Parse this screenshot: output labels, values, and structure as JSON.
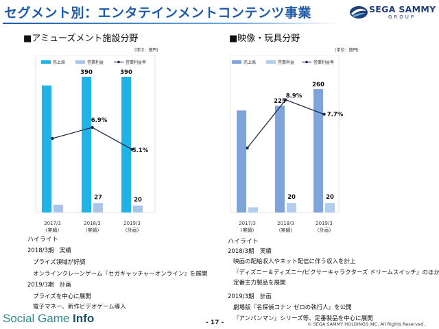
{
  "header": {
    "title": "セグメント別：エンタテインメントコンテンツ事業",
    "logo_text": "SEGA SAMMY",
    "logo_sub": "GROUP"
  },
  "legend": {
    "sales": "売上高",
    "operating_income": "営業利益",
    "margin": "営業利益率"
  },
  "colors": {
    "left_sales": "#1fb3e6",
    "left_income": "#a9c6ea",
    "right_sales": "#7fa3db",
    "right_income": "#b3cdee",
    "line": "#1c2b4a",
    "title_blue": "#1e5aa8"
  },
  "chart_data": [
    {
      "type": "bar",
      "title": "■アミューズメント施設分野",
      "unit": "(単位：億円)",
      "categories": [
        "2017/3",
        "2018/3",
        "2019/3"
      ],
      "category_sub": [
        "(実績)",
        "(実績)",
        "(計画)"
      ],
      "series": [
        {
          "name": "売上高",
          "values": [
            365,
            390,
            390
          ],
          "labels": [
            "",
            "390",
            "390"
          ]
        },
        {
          "name": "営業利益",
          "values": [
            22,
            27,
            20
          ],
          "labels": [
            "",
            "27",
            "20"
          ]
        },
        {
          "name": "営業利益率",
          "kind": "line",
          "values": [
            6.0,
            6.9,
            5.1
          ],
          "labels": [
            "",
            "6.9%",
            "5.1%"
          ]
        }
      ]
    },
    {
      "type": "bar",
      "title": "■映像・玩具分野",
      "unit": "(単位：億円)",
      "categories": [
        "2017/3",
        "2018/3",
        "2019/3"
      ],
      "category_sub": [
        "(実績)",
        "(実績)",
        "(計画)"
      ],
      "series": [
        {
          "name": "売上高",
          "values": [
            215,
            225,
            260
          ],
          "labels": [
            "",
            "225",
            "260"
          ]
        },
        {
          "name": "営業利益",
          "values": [
            11,
            20,
            20
          ],
          "labels": [
            "",
            "20",
            "20"
          ]
        },
        {
          "name": "営業利益率",
          "kind": "line",
          "values": [
            4.9,
            8.9,
            7.7
          ],
          "labels": [
            "",
            "8.9%",
            "7.7%"
          ]
        }
      ]
    }
  ],
  "highlights_left": [
    "ハイライト",
    "2018/3期　実績",
    "プライズ領域が好調",
    "オンラインクレーンゲーム『セガキャッチャーオンライン』を展開",
    "2019/3期　計画",
    "プライズを中心に展開",
    "電子マネー、新作ビデオゲーム導入"
  ],
  "highlights_right": [
    "ハイライト",
    "2018/3期　実績",
    "映画の配給収入やネット配信に伴う収入を計上",
    "『ディズニー＆ディズニー/ピクサーキャラクターズ ドリームスイッチ』のほか、",
    "定番主力製品を展開",
    "2019/3期　計画",
    "劇場版『名探偵コナン ゼロの執行人』を公開",
    "『アンパンマン』シリーズ等、定番製品を中心に展開"
  ],
  "footer": {
    "brand_a": "Social Game ",
    "brand_b": "Info",
    "page": "- 17 -",
    "copyright": "© SEGA SAMMY HOLDINGS INC. All Rights Reserved."
  }
}
